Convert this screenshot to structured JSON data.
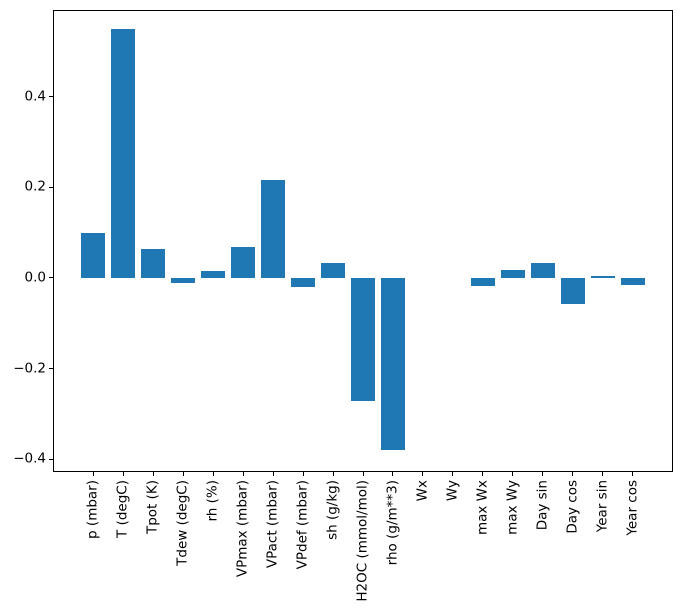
{
  "figure": {
    "background_color": "#ffffff",
    "axis_color": "#000000",
    "text_color": "#000000"
  },
  "chart_data": {
    "type": "bar",
    "categories": [
      "p (mbar)",
      "T (degC)",
      "Tpot (K)",
      "Tdew (degC)",
      "rh (%)",
      "VPmax (mbar)",
      "VPact (mbar)",
      "VPdef (mbar)",
      "sh (g/kg)",
      "H2OC (mmol/mol)",
      "rho (g/m**3)",
      "Wx",
      "Wy",
      "max Wx",
      "max Wy",
      "Day sin",
      "Day cos",
      "Year sin",
      "Year cos"
    ],
    "values": [
      0.099,
      0.548,
      0.064,
      -0.012,
      0.015,
      0.069,
      0.216,
      -0.021,
      0.034,
      -0.271,
      -0.379,
      0.0,
      0.0,
      -0.018,
      0.017,
      0.034,
      -0.058,
      0.004,
      -0.015
    ],
    "ylim": [
      -0.428,
      0.591
    ],
    "xlim": [
      -1.34,
      19.34
    ],
    "yticks": [
      -0.4,
      -0.2,
      0.0,
      0.2,
      0.4
    ],
    "ytick_labels": [
      "−0.4",
      "−0.2",
      "0.0",
      "0.2",
      "0.4"
    ],
    "xtick_rotation_deg": 90,
    "grid": false,
    "legend": false,
    "bar_color": "#1f77b4",
    "bar_width_fraction": 0.8
  }
}
